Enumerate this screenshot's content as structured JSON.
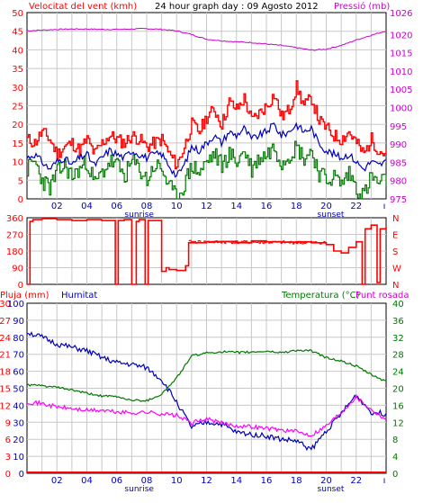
{
  "header": {
    "wind_label": "Velocitat del vent (kmh)",
    "title": "24 hour graph day : 09 Agosto 2012",
    "pressure_label": "Pressió (mb)"
  },
  "bottom_header": {
    "rain_label": "Pluja (mm)",
    "humidity_label": "Humitat",
    "temperature_label": "Temperatura (°C)",
    "dewpoint_label": "Punt rosada"
  },
  "colors": {
    "wind_gust": "#ff0000",
    "wind_avg": "#0000bb",
    "wind_min": "#007700",
    "pressure": "#cc00cc",
    "direction": "#ff0000",
    "humidity": "#0000bb",
    "temperature": "#007700",
    "dewpoint": "#ff00ff",
    "rain": "#ff0000",
    "grid": "#c8c8c8"
  },
  "chart_data": [
    {
      "type": "line",
      "x_tick_labels": [
        "02",
        "04",
        "06",
        "08",
        "10",
        "12",
        "14",
        "16",
        "18",
        "20",
        "22"
      ],
      "x_annotations": [
        {
          "hour": 7.5,
          "text": "sunrise"
        },
        {
          "hour": 20.3,
          "text": "sunset"
        }
      ],
      "y_left": {
        "label": "Velocitat del vent (kmh)",
        "range": [
          0,
          50
        ],
        "ticks": [
          0,
          5,
          10,
          15,
          20,
          25,
          30,
          35,
          40,
          45,
          50
        ]
      },
      "y_right": {
        "label": "Pressió (mb)",
        "range": [
          975,
          1026
        ],
        "ticks": [
          975,
          980,
          985,
          990,
          995,
          1000,
          1005,
          1010,
          1015,
          1020,
          1026
        ]
      },
      "series": [
        {
          "axis": "left",
          "hours": [
            0,
            0.5,
            1,
            1.5,
            2,
            2.5,
            3,
            3.5,
            4,
            4.5,
            5,
            5.5,
            6,
            6.5,
            7,
            7.5,
            8,
            8.5,
            9,
            9.5,
            10,
            10.5,
            11,
            11.5,
            12,
            12.5,
            13,
            13.5,
            14,
            14.5,
            15,
            15.5,
            16,
            16.5,
            17,
            17.5,
            18,
            18.5,
            19,
            19.5,
            20,
            20.5,
            21,
            21.5,
            22,
            22.5,
            23,
            23.5,
            24
          ],
          "values": [
            16,
            15,
            18,
            16,
            12,
            14,
            15,
            13,
            16,
            12,
            15,
            17,
            16,
            15,
            17,
            16,
            14,
            15,
            16,
            12,
            9,
            14,
            20,
            18,
            22,
            24,
            20,
            26,
            24,
            27,
            21,
            23,
            25,
            28,
            22,
            24,
            30,
            25,
            27,
            21,
            19,
            17,
            16,
            18,
            15,
            12,
            16,
            13,
            12
          ]
        },
        {
          "axis": "left",
          "hours": [
            0,
            0.5,
            1,
            1.5,
            2,
            2.5,
            3,
            3.5,
            4,
            4.5,
            5,
            5.5,
            6,
            6.5,
            7,
            7.5,
            8,
            8.5,
            9,
            9.5,
            10,
            10.5,
            11,
            11.5,
            12,
            12.5,
            13,
            13.5,
            14,
            14.5,
            15,
            15.5,
            16,
            16.5,
            17,
            17.5,
            18,
            18.5,
            19,
            19.5,
            20,
            20.5,
            21,
            21.5,
            22,
            22.5,
            23,
            23.5,
            24
          ],
          "values": [
            11,
            12,
            10,
            8,
            10,
            11,
            9,
            11,
            12,
            9,
            11,
            13,
            12,
            11,
            13,
            12,
            11,
            12,
            12,
            9,
            6,
            9,
            14,
            13,
            15,
            17,
            15,
            18,
            17,
            19,
            16,
            17,
            18,
            20,
            17,
            18,
            20,
            18,
            19,
            15,
            13,
            12,
            11,
            12,
            10,
            8,
            10,
            9,
            10
          ]
        },
        {
          "axis": "left",
          "hours": [
            0,
            0.5,
            1,
            1.5,
            2,
            2.5,
            3,
            3.5,
            4,
            4.5,
            5,
            5.5,
            6,
            6.5,
            7,
            7.5,
            8,
            8.5,
            9,
            9.5,
            10,
            10.5,
            11,
            11.5,
            12,
            12.5,
            13,
            13.5,
            14,
            14.5,
            15,
            15.5,
            16,
            16.5,
            17,
            17.5,
            18,
            18.5,
            19,
            19.5,
            20,
            20.5,
            21,
            21.5,
            22,
            22.5,
            23,
            23.5,
            24
          ],
          "values": [
            8,
            10,
            5,
            3,
            7,
            9,
            6,
            8,
            10,
            4,
            7,
            10,
            9,
            6,
            10,
            8,
            5,
            9,
            8,
            3,
            0,
            4,
            9,
            7,
            10,
            12,
            9,
            12,
            10,
            13,
            8,
            11,
            12,
            14,
            10,
            12,
            14,
            11,
            13,
            7,
            5,
            6,
            4,
            7,
            3,
            1,
            6,
            4,
            5
          ]
        },
        {
          "axis": "right",
          "hours": [
            0,
            1,
            2,
            3,
            4,
            5,
            6,
            7,
            8,
            9,
            10,
            11,
            12,
            13,
            14,
            15,
            16,
            17,
            18,
            19,
            20,
            21,
            22,
            23,
            24
          ],
          "values": [
            1021,
            1021.2,
            1021.4,
            1021.5,
            1021.5,
            1021.4,
            1021.4,
            1021.5,
            1021.6,
            1021.4,
            1021,
            1020,
            1018.7,
            1018.3,
            1018,
            1017.8,
            1017.4,
            1017,
            1016.4,
            1015.7,
            1016,
            1017,
            1018.5,
            1019.8,
            1021
          ]
        }
      ]
    },
    {
      "type": "line",
      "title": "",
      "y_left": {
        "range": [
          0,
          360
        ],
        "ticks": [
          0,
          90,
          180,
          270,
          360
        ]
      },
      "y_right": {
        "labels": [
          "N",
          "W",
          "S",
          "E",
          "N"
        ]
      },
      "series": [
        {
          "hours": [
            0,
            0.2,
            0.4,
            1,
            2,
            3,
            4,
            5,
            5.9,
            6.1,
            6.5,
            7,
            7.3,
            7.5,
            7.9,
            8.1,
            9,
            9.3,
            9.5,
            10,
            10.6,
            10.8,
            12,
            13,
            14,
            15,
            16,
            17,
            18,
            19,
            20,
            20.5,
            21,
            21.5,
            22,
            22.4,
            22.6,
            23,
            23.4,
            23.6,
            24
          ],
          "values": [
            0,
            340,
            350,
            355,
            350,
            345,
            350,
            345,
            0,
            345,
            350,
            0,
            340,
            350,
            0,
            345,
            70,
            90,
            80,
            75,
            100,
            225,
            230,
            232,
            225,
            235,
            230,
            228,
            230,
            225,
            215,
            180,
            170,
            200,
            230,
            0,
            300,
            320,
            10,
            300,
            310
          ]
        }
      ]
    },
    {
      "type": "line",
      "y_left_rain": {
        "label": "Pluja (mm)",
        "ticks": [
          0,
          3,
          6,
          9,
          12,
          15,
          18,
          21,
          24,
          27,
          30
        ]
      },
      "y_left_humidity": {
        "label": "Humitat",
        "ticks": [
          0,
          10,
          20,
          30,
          40,
          50,
          60,
          70,
          80,
          90,
          100
        ]
      },
      "y_right": {
        "label": "Temperatura (°C)",
        "ticks": [
          0,
          4,
          8,
          12,
          16,
          20,
          24,
          28,
          32,
          36,
          40
        ]
      },
      "y_range_percent": [
        0,
        100
      ],
      "series": [
        {
          "hours": [
            0,
            1,
            2,
            3,
            4,
            5,
            6,
            7,
            8,
            9,
            10,
            11,
            12,
            13,
            14,
            15,
            16,
            17,
            18,
            19,
            20,
            21,
            22,
            23,
            24
          ],
          "values": [
            83,
            80,
            76,
            74,
            72,
            68,
            65,
            64,
            62,
            55,
            42,
            27,
            30,
            29,
            24,
            23,
            22,
            20,
            19,
            14,
            25,
            35,
            46,
            36,
            35
          ]
        },
        {
          "hours": [
            0,
            1,
            2,
            3,
            4,
            5,
            6,
            7,
            8,
            9,
            10,
            11,
            12,
            13,
            14,
            15,
            16,
            17,
            18,
            19,
            20,
            21,
            22,
            23,
            24
          ],
          "values": [
            20.8,
            20.6,
            20.2,
            19.6,
            18.8,
            18.2,
            18,
            17.2,
            17.1,
            18.6,
            22.4,
            27.6,
            28.3,
            28.6,
            28.4,
            28.5,
            28.7,
            28.4,
            28.9,
            28.8,
            27.2,
            26.4,
            25.2,
            23.2,
            21.6
          ]
        },
        {
          "hours": [
            0,
            1,
            2,
            3,
            4,
            5,
            6,
            7,
            8,
            9,
            10,
            11,
            12,
            13,
            14,
            15,
            16,
            17,
            18,
            19,
            20,
            21,
            22,
            23,
            24
          ],
          "values": [
            16.8,
            16.4,
            15.6,
            15.2,
            14.8,
            14.8,
            14.4,
            14.2,
            14.4,
            14,
            13.6,
            11.8,
            12.8,
            11.8,
            11.2,
            11,
            10.6,
            10.2,
            9.8,
            9,
            11.2,
            14.4,
            18,
            15,
            12.8
          ]
        },
        {
          "hours": [
            0,
            24
          ],
          "values": [
            0,
            0
          ]
        }
      ]
    }
  ]
}
